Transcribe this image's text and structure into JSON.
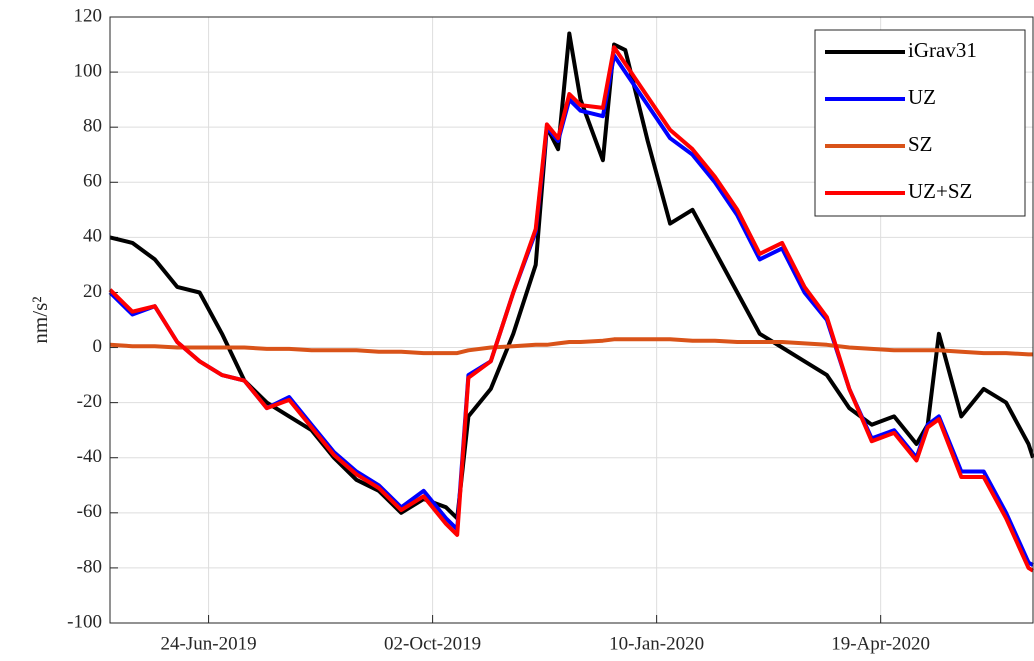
{
  "chart_data": {
    "type": "line",
    "y_label": "nm/s²",
    "x": [
      "2019-05-11",
      "2019-05-21",
      "2019-05-31",
      "2019-06-10",
      "2019-06-20",
      "2019-06-30",
      "2019-07-10",
      "2019-07-20",
      "2019-07-30",
      "2019-08-09",
      "2019-08-19",
      "2019-08-29",
      "2019-09-08",
      "2019-09-18",
      "2019-09-28",
      "2019-10-08",
      "2019-10-13",
      "2019-10-18",
      "2019-10-28",
      "2019-11-07",
      "2019-11-17",
      "2019-11-22",
      "2019-11-27",
      "2019-12-02",
      "2019-12-07",
      "2019-12-17",
      "2019-12-22",
      "2019-12-27",
      "2020-01-06",
      "2020-01-16",
      "2020-01-26",
      "2020-02-05",
      "2020-02-15",
      "2020-02-25",
      "2020-03-06",
      "2020-03-16",
      "2020-03-26",
      "2020-04-05",
      "2020-04-15",
      "2020-04-25",
      "2020-05-05",
      "2020-05-10",
      "2020-05-15",
      "2020-05-25",
      "2020-06-04",
      "2020-06-14",
      "2020-06-24",
      "2020-06-26"
    ],
    "series": [
      {
        "name": "iGrav31",
        "color": "#000000",
        "values": [
          40,
          38,
          32,
          22,
          20,
          5,
          -12,
          -20,
          -25,
          -30,
          -40,
          -48,
          -52,
          -60,
          -55,
          -58,
          -62,
          -25,
          -15,
          5,
          30,
          80,
          72,
          114,
          90,
          68,
          110,
          108,
          75,
          45,
          50,
          35,
          20,
          5,
          0,
          -5,
          -10,
          -22,
          -28,
          -25,
          -35,
          -28,
          5,
          -25,
          -15,
          -20,
          -35,
          -40
        ]
      },
      {
        "name": "UZ",
        "color": "#0000ff",
        "values": [
          20,
          12,
          15,
          2,
          -5,
          -10,
          -12,
          -22,
          -18,
          -28,
          -38,
          -45,
          -50,
          -58,
          -52,
          -62,
          -66,
          -10,
          -5,
          20,
          42,
          80,
          75,
          90,
          86,
          84,
          106,
          100,
          88,
          76,
          70,
          60,
          48,
          32,
          36,
          20,
          10,
          -15,
          -33,
          -30,
          -40,
          -28,
          -25,
          -45,
          -45,
          -60,
          -78,
          -79
        ]
      },
      {
        "name": "SZ",
        "color": "#d95319",
        "values": [
          1,
          0.5,
          0.5,
          0,
          0,
          0,
          0,
          -0.5,
          -0.5,
          -1,
          -1,
          -1,
          -1.5,
          -1.5,
          -2,
          -2,
          -2,
          -1,
          0,
          0.5,
          1,
          1,
          1.5,
          2,
          2,
          2.5,
          3,
          3,
          3,
          3,
          2.5,
          2.5,
          2,
          2,
          2,
          1.5,
          1,
          0,
          -0.5,
          -1,
          -1,
          -1,
          -1,
          -1.5,
          -2,
          -2,
          -2.5,
          -2.5
        ]
      },
      {
        "name": "UZ+SZ",
        "color": "#ff0000",
        "values": [
          21,
          13,
          15,
          2,
          -5,
          -10,
          -12,
          -22,
          -19,
          -29,
          -39,
          -46,
          -51,
          -59,
          -54,
          -64,
          -68,
          -11,
          -5,
          20,
          43,
          81,
          76,
          92,
          88,
          87,
          109,
          103,
          91,
          79,
          72,
          62,
          50,
          34,
          38,
          22,
          11,
          -15,
          -34,
          -31,
          -41,
          -29,
          -26,
          -47,
          -47,
          -62,
          -80,
          -81
        ]
      }
    ],
    "xlim": [
      "2019-05-11",
      "2020-06-26"
    ],
    "xticks": [
      {
        "value": "2019-06-24",
        "label": "24-Jun-2019"
      },
      {
        "value": "2019-10-02",
        "label": "02-Oct-2019"
      },
      {
        "value": "2020-01-10",
        "label": "10-Jan-2020"
      },
      {
        "value": "2020-04-19",
        "label": "19-Apr-2020"
      }
    ],
    "ylim": [
      -100,
      120
    ],
    "yticks": [
      -100,
      -80,
      -60,
      -40,
      -20,
      0,
      20,
      40,
      60,
      80,
      100,
      120
    ],
    "grid": true,
    "legend": "top-right"
  }
}
